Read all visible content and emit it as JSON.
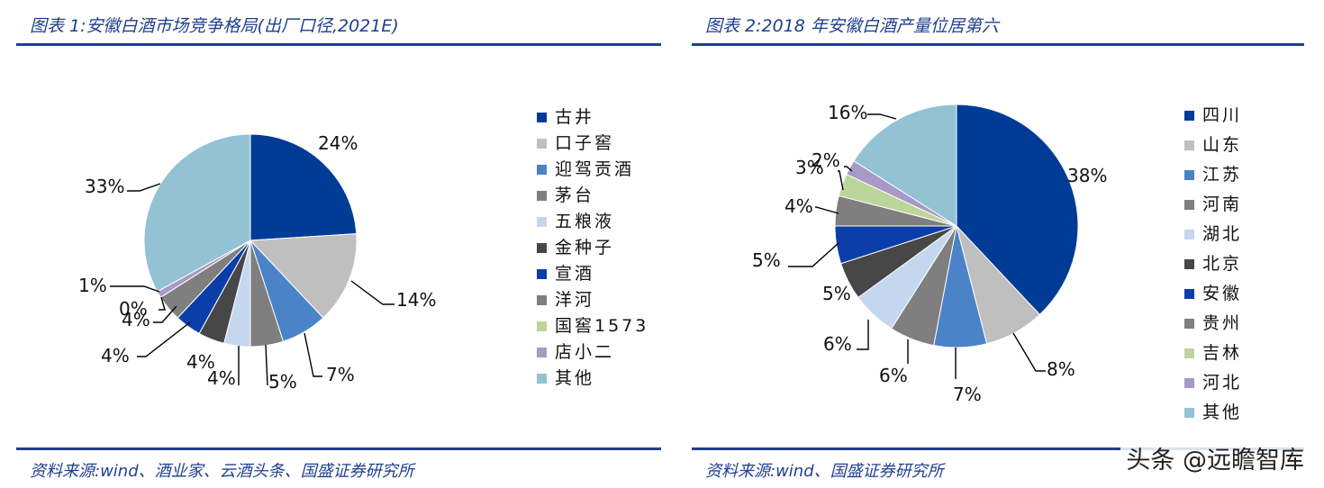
{
  "left": {
    "title": "图表 1:安徽白酒市场竞争格局(出厂口径,2021E)",
    "source": "资料来源:wind、酒业家、云酒头条、国盛证券研究所"
  },
  "right": {
    "title": "图表 2:2018 年安徽白酒产量位居第六",
    "source": "资料来源:wind、国盛证券研究所"
  },
  "watermark": "头条 @远瞻智库",
  "chart_data": [
    {
      "type": "pie",
      "title": "图表 1:安徽白酒市场竞争格局(出厂口径,2021E)",
      "categories": [
        "古井",
        "口子窖",
        "迎驾贡酒",
        "茅台",
        "五粮液",
        "金种子",
        "宣酒",
        "洋河",
        "国窖1573",
        "店小二",
        "其他"
      ],
      "values": [
        24,
        14,
        7,
        5,
        4,
        4,
        4,
        4,
        0,
        1,
        33
      ],
      "data_labels": [
        "24%",
        "14%",
        "7%",
        "5%",
        "4%",
        "4%",
        "4%",
        "4%",
        "0%",
        "1%",
        "33%"
      ],
      "colors": [
        "#003c96",
        "#bfbfbf",
        "#4a83c8",
        "#7f7f7f",
        "#c5d7ee",
        "#474747",
        "#0b3ea8",
        "#7f7f7f",
        "#bcd59a",
        "#a899c6",
        "#92c2d4"
      ],
      "legend_position": "right"
    },
    {
      "type": "pie",
      "title": "图表 2:2018 年安徽白酒产量位居第六",
      "categories": [
        "四川",
        "山东",
        "江苏",
        "河南",
        "湖北",
        "北京",
        "安徽",
        "贵州",
        "吉林",
        "河北",
        "其他"
      ],
      "values": [
        38,
        8,
        7,
        6,
        6,
        5,
        5,
        4,
        3,
        2,
        16
      ],
      "data_labels": [
        "38%",
        "8%",
        "7%",
        "6%",
        "6%",
        "5%",
        "5%",
        "4%",
        "3%",
        "2%",
        "16%"
      ],
      "colors": [
        "#003c96",
        "#bfbfbf",
        "#4a83c8",
        "#7f7f7f",
        "#c5d7ee",
        "#474747",
        "#0b3ea8",
        "#7f7f7f",
        "#bcd59a",
        "#a899c6",
        "#92c2d4"
      ],
      "legend_position": "right"
    }
  ]
}
